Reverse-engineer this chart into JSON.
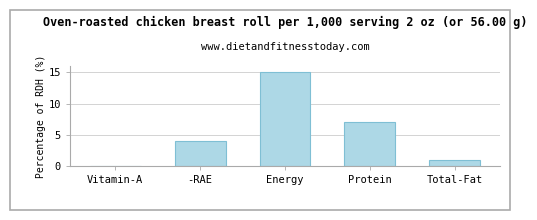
{
  "title": "Oven-roasted chicken breast roll per 1,000 serving 2 oz (or 56.00 g)",
  "subtitle": "www.dietandfitnesstoday.com",
  "categories": [
    "Vitamin-A",
    "-RAE",
    "Energy",
    "Protein",
    "Total-Fat"
  ],
  "values": [
    0,
    4,
    15,
    7,
    1
  ],
  "bar_color": "#add8e6",
  "ylabel": "Percentage of RDH (%)",
  "ylim": [
    0,
    16
  ],
  "yticks": [
    0,
    5,
    10,
    15
  ],
  "title_fontsize": 8.5,
  "subtitle_fontsize": 7.5,
  "ylabel_fontsize": 7,
  "tick_fontsize": 7.5,
  "background_color": "#ffffff",
  "grid_color": "#cccccc",
  "bar_edge_color": "#7fbfd4",
  "border_color": "#aaaaaa"
}
